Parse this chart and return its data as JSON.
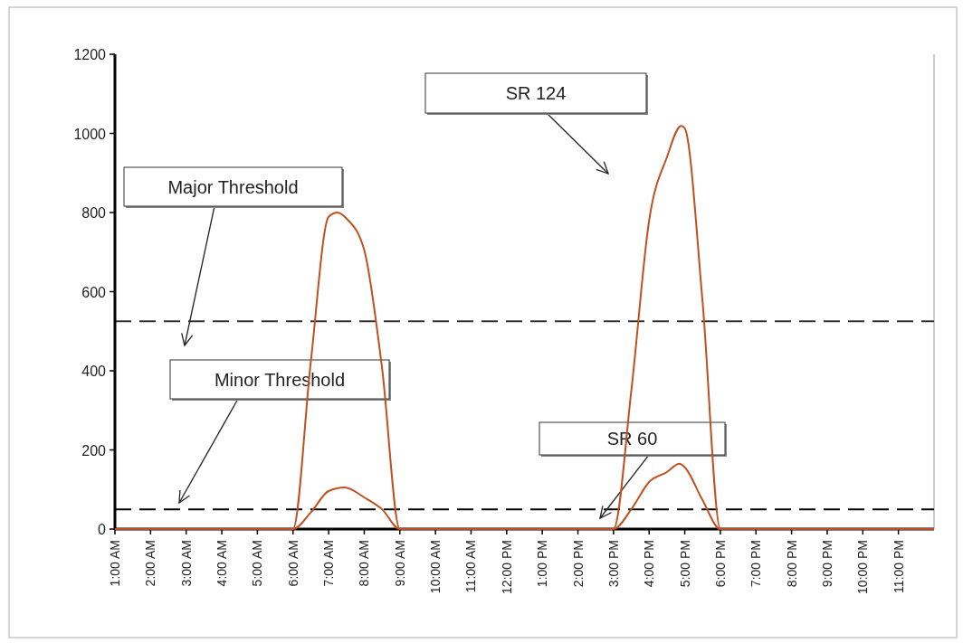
{
  "chart_data": {
    "type": "line",
    "xlim": [
      1,
      24
    ],
    "ylim": [
      0,
      1200
    ],
    "yticks": [
      0,
      200,
      400,
      600,
      800,
      1000,
      1200
    ],
    "xticks": [
      {
        "value": 1,
        "label": "1:00 AM"
      },
      {
        "value": 2,
        "label": "2:00 AM"
      },
      {
        "value": 3,
        "label": "3:00 AM"
      },
      {
        "value": 4,
        "label": "4:00 AM"
      },
      {
        "value": 5,
        "label": "5:00 AM"
      },
      {
        "value": 6,
        "label": "6:00 AM"
      },
      {
        "value": 7,
        "label": "7:00 AM"
      },
      {
        "value": 8,
        "label": "8:00 AM"
      },
      {
        "value": 9,
        "label": "9:00 AM"
      },
      {
        "value": 10,
        "label": "10:00 AM"
      },
      {
        "value": 11,
        "label": "11:00 AM"
      },
      {
        "value": 12,
        "label": "12:00 PM"
      },
      {
        "value": 13,
        "label": "1:00 PM"
      },
      {
        "value": 14,
        "label": "2:00 PM"
      },
      {
        "value": 15,
        "label": "3:00 PM"
      },
      {
        "value": 16,
        "label": "4:00 PM"
      },
      {
        "value": 17,
        "label": "5:00 PM"
      },
      {
        "value": 18,
        "label": "6:00 PM"
      },
      {
        "value": 19,
        "label": "7:00 PM"
      },
      {
        "value": 20,
        "label": "8:00 PM"
      },
      {
        "value": 21,
        "label": "9:00 PM"
      },
      {
        "value": 22,
        "label": "10:00 PM"
      },
      {
        "value": 23,
        "label": "11:00 PM"
      }
    ],
    "series": [
      {
        "name": "SR 124",
        "color": "#c0501f",
        "x": [
          1,
          2,
          3,
          4,
          5,
          6,
          6.5,
          7,
          7.25,
          7.5,
          8,
          8.5,
          9,
          10,
          11,
          12,
          13,
          14,
          15,
          15.5,
          16,
          16.5,
          16.9,
          17,
          17.5,
          18,
          19,
          20,
          21,
          22,
          23,
          24
        ],
        "values": [
          0,
          0,
          0,
          0,
          0,
          0,
          423,
          789,
          800,
          785,
          705,
          407,
          0,
          0,
          0,
          0,
          0,
          0,
          0,
          350,
          780,
          940,
          1019,
          1013,
          575,
          0,
          0,
          0,
          0,
          0,
          0,
          0
        ]
      },
      {
        "name": "SR 60",
        "color": "#c0501f",
        "x": [
          1,
          2,
          3,
          4,
          5,
          6,
          6.5,
          7,
          7.45,
          8,
          8.5,
          9,
          10,
          11,
          12,
          13,
          14,
          15,
          15.5,
          16,
          16.5,
          16.85,
          17,
          17.5,
          18,
          19,
          20,
          21,
          22,
          23,
          24
        ],
        "values": [
          0,
          0,
          0,
          0,
          0,
          0,
          42,
          96,
          105,
          80,
          50,
          0,
          0,
          0,
          0,
          0,
          0,
          0,
          50,
          119,
          144,
          165,
          156,
          73,
          0,
          0,
          0,
          0,
          0,
          0,
          0
        ]
      }
    ],
    "ref_lines": [
      {
        "axis": "y",
        "value": 525,
        "color": "#333333",
        "line_style": "dashed"
      },
      {
        "axis": "y",
        "value": 50,
        "color": "#000000",
        "line_style": "dashed"
      }
    ],
    "annotations": [
      "Major Threshold",
      "Minor Threshold"
    ],
    "marker": "none",
    "line_style": "solid",
    "grid": false
  }
}
